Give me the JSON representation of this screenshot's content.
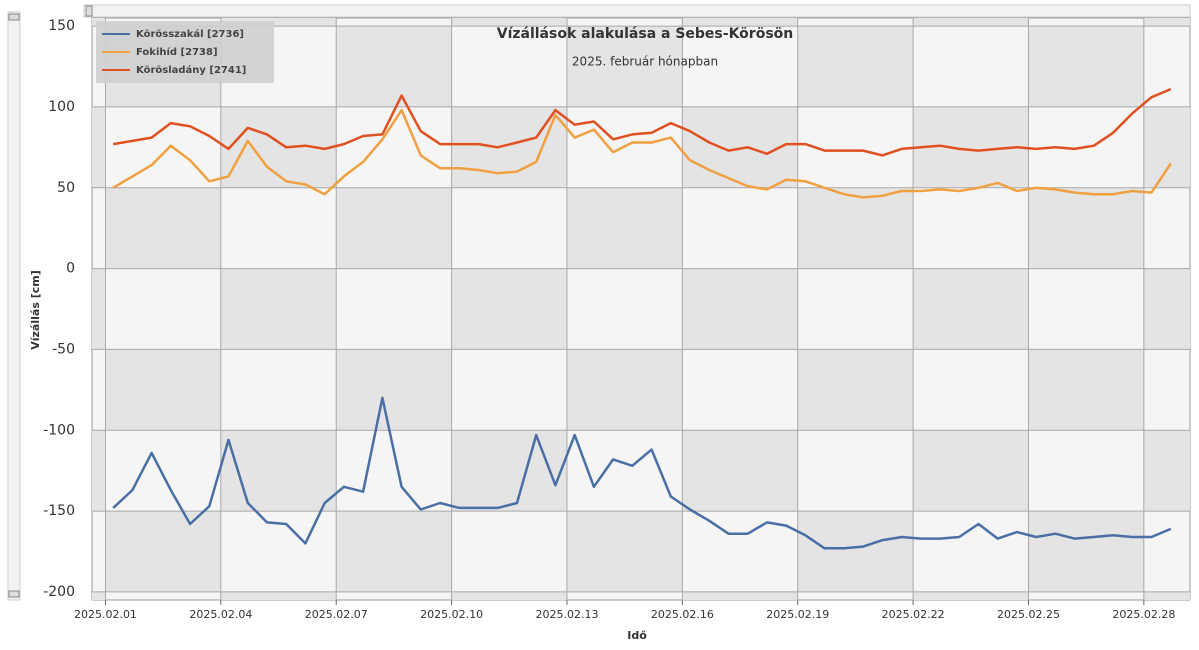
{
  "chart_data": {
    "type": "line",
    "title": "Vízállások alakulása a Sebes-Körösön",
    "subtitle": "2025. február hónapban",
    "xlabel": "Idő",
    "ylabel": "Vízállás [cm]",
    "x": [
      1.2,
      1.7,
      2.2,
      2.7,
      3.2,
      3.7,
      4.2,
      4.7,
      5.2,
      5.7,
      6.2,
      6.7,
      7.2,
      7.7,
      8.2,
      8.7,
      9.2,
      9.7,
      10.2,
      10.7,
      11.2,
      11.7,
      12.2,
      12.7,
      13.2,
      13.7,
      14.2,
      14.7,
      15.2,
      15.7,
      16.2,
      16.7,
      17.2,
      17.7,
      18.2,
      18.7,
      19.2,
      19.7,
      20.2,
      20.7,
      21.2,
      21.7,
      22.2,
      22.7,
      23.2,
      23.7,
      24.2,
      24.7,
      25.2,
      25.7,
      26.2,
      26.7,
      27.2,
      27.7,
      28.2,
      28.7
    ],
    "series": [
      {
        "name": "Körösszakál [2736]",
        "color": "#4a6fa5",
        "values": [
          -148,
          -137,
          -114,
          -137,
          -158,
          -147,
          -106,
          -145,
          -157,
          -158,
          -170,
          -145,
          -135,
          -138,
          -80,
          -135,
          -149,
          -145,
          -148,
          -148,
          -148,
          -145,
          -103,
          -134,
          -103,
          -135,
          -118,
          -122,
          -112,
          -141,
          -149,
          -156,
          -164,
          -164,
          -157,
          -159,
          -165,
          -173,
          -173,
          -172,
          -168,
          -166,
          -167,
          -167,
          -166,
          -158,
          -167,
          -163,
          -166,
          -164,
          -167,
          -166,
          -165,
          -166,
          -166,
          -161
        ]
      },
      {
        "name": "Fokihíd [2738]",
        "color": "#f0a040",
        "values": [
          50,
          57,
          64,
          76,
          67,
          54,
          57,
          79,
          63,
          54,
          52,
          46,
          57,
          66,
          80,
          98,
          70,
          62,
          62,
          61,
          59,
          60,
          66,
          95,
          81,
          86,
          72,
          78,
          78,
          81,
          67,
          61,
          56,
          51,
          49,
          55,
          54,
          50,
          46,
          44,
          45,
          48,
          48,
          49,
          48,
          50,
          53,
          48,
          50,
          49,
          47,
          46,
          46,
          48,
          47,
          65
        ]
      },
      {
        "name": "Körösladány [2741]",
        "color": "#e05020",
        "values": [
          77,
          79,
          81,
          90,
          88,
          82,
          74,
          87,
          83,
          75,
          76,
          74,
          77,
          82,
          83,
          107,
          85,
          77,
          77,
          77,
          75,
          78,
          81,
          98,
          89,
          91,
          80,
          83,
          84,
          90,
          85,
          78,
          73,
          75,
          71,
          77,
          77,
          73,
          73,
          73,
          70,
          74,
          75,
          76,
          74,
          73,
          74,
          75,
          74,
          75,
          74,
          76,
          84,
          96,
          106,
          111
        ]
      }
    ],
    "xlim": [
      0.65,
      29.2
    ],
    "xticks": [
      {
        "value": 1,
        "label": "2025.02.01"
      },
      {
        "value": 4,
        "label": "2025.02.04"
      },
      {
        "value": 7,
        "label": "2025.02.07"
      },
      {
        "value": 10,
        "label": "2025.02.10"
      },
      {
        "value": 13,
        "label": "2025.02.13"
      },
      {
        "value": 16,
        "label": "2025.02.16"
      },
      {
        "value": 19,
        "label": "2025.02.19"
      },
      {
        "value": 22,
        "label": "2025.02.22"
      },
      {
        "value": 25,
        "label": "2025.02.25"
      },
      {
        "value": 28,
        "label": "2025.02.28"
      }
    ],
    "ylim": [
      -205,
      155
    ],
    "yticks": [
      150,
      100,
      50,
      0,
      -50,
      -100,
      -150,
      -200
    ],
    "grid": true,
    "legend": "top-left"
  }
}
